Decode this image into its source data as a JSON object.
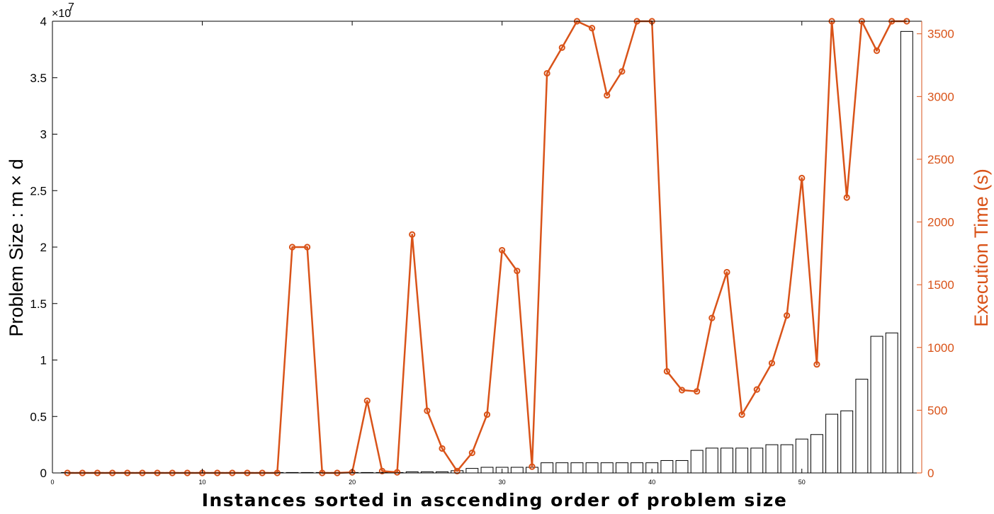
{
  "chart_data": {
    "type": "bar+line",
    "xlabel": "Instances sorted in asccending order of problem size",
    "ylabel_left": "Problem Size : m × d",
    "ylabel_right": "Execution Time (s)",
    "left_exponent_base": "×10",
    "left_exponent": "7",
    "xlim": [
      0,
      58
    ],
    "ylim_left": [
      0,
      4
    ],
    "ylim_right": [
      0,
      3600
    ],
    "x_ticks": [
      "0",
      "10",
      "20",
      "30",
      "40",
      "50"
    ],
    "y_left_ticks": [
      "0",
      "0.5",
      "1",
      "1.5",
      "2",
      "2.5",
      "3",
      "3.5",
      "4"
    ],
    "y_right_ticks": [
      "0",
      "500",
      "1000",
      "1500",
      "2000",
      "2500",
      "3000",
      "3500"
    ],
    "x": [
      1,
      2,
      3,
      4,
      5,
      6,
      7,
      8,
      9,
      10,
      11,
      12,
      13,
      14,
      15,
      16,
      17,
      18,
      19,
      20,
      21,
      22,
      23,
      24,
      25,
      26,
      27,
      28,
      29,
      30,
      31,
      32,
      33,
      34,
      35,
      36,
      37,
      38,
      39,
      40,
      41,
      42,
      43,
      44,
      45,
      46,
      47,
      48,
      49,
      50,
      51,
      52,
      53,
      54,
      55,
      56,
      57
    ],
    "series": [
      {
        "name": "Problem Size",
        "axis": "left",
        "kind": "bar",
        "unit_multiplier": 10000000,
        "values": [
          0,
          0,
          0,
          0,
          0,
          0,
          0,
          0,
          0,
          0,
          0,
          0,
          0,
          0,
          0,
          0,
          0,
          0,
          0,
          0,
          0,
          0,
          0,
          0.01,
          0.01,
          0.01,
          0.02,
          0.04,
          0.05,
          0.05,
          0.05,
          0.05,
          0.09,
          0.09,
          0.09,
          0.09,
          0.09,
          0.09,
          0.09,
          0.09,
          0.11,
          0.11,
          0.2,
          0.22,
          0.22,
          0.22,
          0.22,
          0.25,
          0.25,
          0.3,
          0.34,
          0.52,
          0.55,
          0.83,
          1.21,
          1.24,
          3.91
        ]
      },
      {
        "name": "Execution Time",
        "axis": "right",
        "kind": "line",
        "values": [
          0,
          0,
          0,
          0,
          0,
          0,
          0,
          0,
          0,
          0,
          0,
          0,
          0,
          0,
          0,
          1800,
          1800,
          0,
          0,
          5,
          575,
          15,
          5,
          1900,
          495,
          195,
          15,
          160,
          465,
          1775,
          1610,
          50,
          3185,
          3390,
          3600,
          3545,
          3010,
          3200,
          3600,
          3600,
          810,
          660,
          650,
          1235,
          1600,
          465,
          665,
          875,
          1255,
          2350,
          865,
          3600,
          2195,
          3600,
          3365,
          3600,
          3600
        ]
      }
    ],
    "colors": {
      "bar_edge": "#000000",
      "bar_fill": "#ffffff",
      "line": "#d95319",
      "axis": "#000000"
    },
    "grid": false,
    "legend": "none"
  }
}
